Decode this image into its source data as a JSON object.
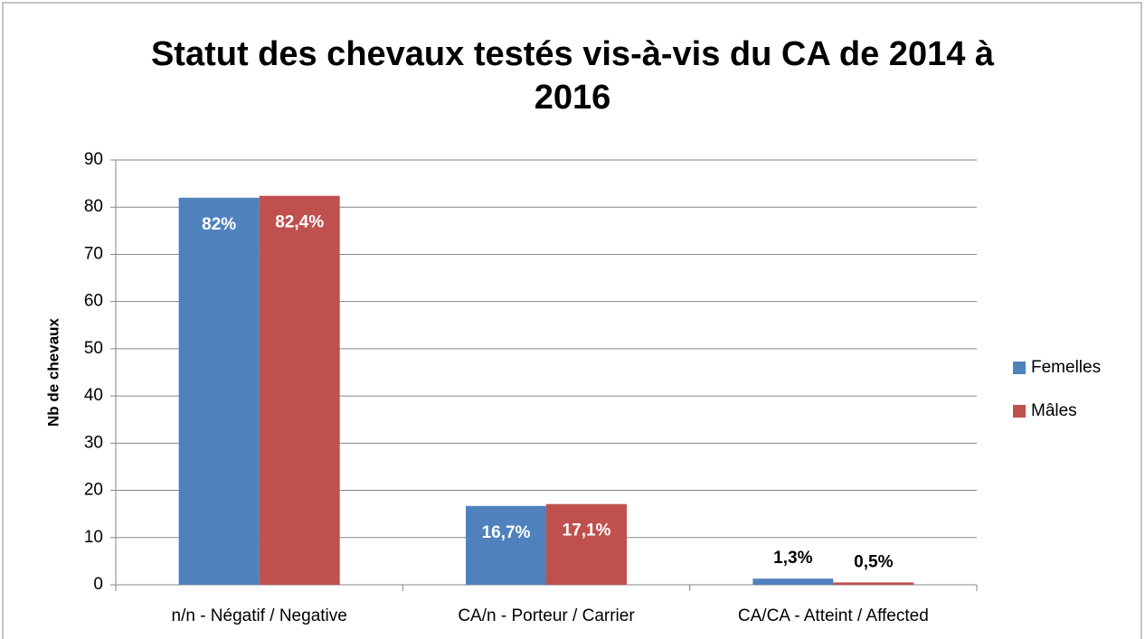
{
  "chart_data": {
    "type": "bar",
    "title": "Statut des chevaux testés vis-à-vis du CA de 2014 à 2016",
    "y_label": "Nb de chevaux",
    "categories": [
      "n/n - Négatif / Negative",
      "CA/n - Porteur / Carrier",
      "CA/CA - Atteint / Affected"
    ],
    "series": [
      {
        "name": "Femelles",
        "color": "#4f81bd",
        "values": [
          82,
          16.7,
          1.3
        ],
        "value_labels": [
          "82%",
          "16,7%",
          "1,3%"
        ]
      },
      {
        "name": "Mâles",
        "color": "#c0504d",
        "values": [
          82.4,
          17.1,
          0.5
        ],
        "value_labels": [
          "82,4%",
          "17,1%",
          "0,5%"
        ]
      }
    ],
    "ylim": [
      0,
      90
    ],
    "yticks": [
      0,
      10,
      20,
      30,
      40,
      50,
      60,
      70,
      80,
      90
    ],
    "grid": true,
    "legend": "right"
  }
}
